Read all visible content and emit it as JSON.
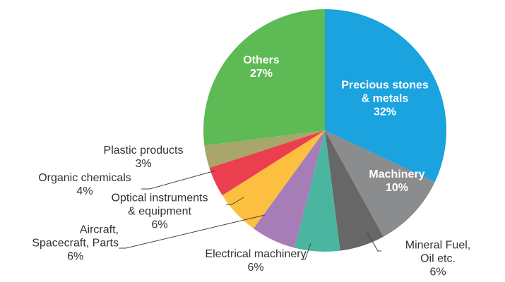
{
  "chart_data": {
    "type": "pie",
    "categories": [
      "Precious stones\n& metals",
      "Machinery",
      "Mineral Fuel, Oil etc.",
      "Electrical machinery",
      "Aircraft,\nSpacecraft, Parts",
      "Optical instruments\n& equipment",
      "Organic chemicals",
      "Plastic products",
      "Others"
    ],
    "values": [
      32,
      10,
      6,
      6,
      6,
      6,
      4,
      3,
      27
    ],
    "value_labels": [
      "32%",
      "10%",
      "6%",
      "6%",
      "6%",
      "6%",
      "4%",
      "3%",
      "27%"
    ],
    "colors": [
      "#1aa3df",
      "#8a8c8e",
      "#666766",
      "#4bb69f",
      "#a77db7",
      "#fdbf3f",
      "#eb3f4f",
      "#a8a66b",
      "#5dba54"
    ]
  }
}
